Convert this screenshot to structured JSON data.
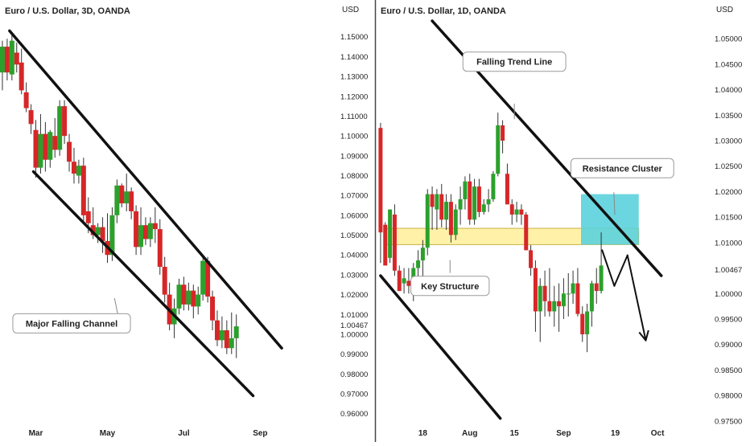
{
  "colors": {
    "up": "#2ca02c",
    "down": "#d62728",
    "wick": "#333333",
    "line": "#111111",
    "zone": "#fff2a8",
    "zone_stroke": "#c8b24a",
    "cluster": "#5bd2dc",
    "divider": "#444444",
    "axis_text": "#222222"
  },
  "chart_data": [
    {
      "type": "candlestick",
      "title": "Euro / U.S. Dollar, 3D, OANDA",
      "ylabel": "USD",
      "ylim": [
        0.955,
        1.158
      ],
      "y_ticks": [
        1.15,
        1.14,
        1.13,
        1.12,
        1.11,
        1.1,
        1.09,
        1.08,
        1.07,
        1.06,
        1.05,
        1.04,
        1.03,
        1.02,
        1.01,
        1.00467,
        1.0,
        0.99,
        0.98,
        0.97,
        0.96
      ],
      "y_tick_labels": [
        "1.15000",
        "1.14000",
        "1.13000",
        "1.12000",
        "1.11000",
        "1.10000",
        "1.09000",
        "1.08000",
        "1.07000",
        "1.06000",
        "1.05000",
        "1.04000",
        "1.03000",
        "1.02000",
        "1.01000",
        "1.00467",
        "1.00000",
        "0.99000",
        "0.98000",
        "0.97000",
        "0.96000"
      ],
      "x_tick_labels": [
        {
          "label": "Mar",
          "index": 7
        },
        {
          "label": "May",
          "index": 22
        },
        {
          "label": "Jul",
          "index": 38
        },
        {
          "label": "Sep",
          "index": 54
        }
      ],
      "x_count": 60,
      "candles": [
        {
          "o": 1.132,
          "h": 1.148,
          "l": 1.123,
          "c": 1.145
        },
        {
          "o": 1.145,
          "h": 1.149,
          "l": 1.128,
          "c": 1.132
        },
        {
          "o": 1.131,
          "h": 1.151,
          "l": 1.128,
          "c": 1.148
        },
        {
          "o": 1.142,
          "h": 1.147,
          "l": 1.132,
          "c": 1.136
        },
        {
          "o": 1.137,
          "h": 1.144,
          "l": 1.121,
          "c": 1.123
        },
        {
          "o": 1.122,
          "h": 1.127,
          "l": 1.112,
          "c": 1.114
        },
        {
          "o": 1.113,
          "h": 1.116,
          "l": 1.101,
          "c": 1.106
        },
        {
          "o": 1.103,
          "h": 1.108,
          "l": 1.079,
          "c": 1.084
        },
        {
          "o": 1.084,
          "h": 1.111,
          "l": 1.081,
          "c": 1.101
        },
        {
          "o": 1.101,
          "h": 1.107,
          "l": 1.082,
          "c": 1.088
        },
        {
          "o": 1.088,
          "h": 1.103,
          "l": 1.084,
          "c": 1.102
        },
        {
          "o": 1.1,
          "h": 1.109,
          "l": 1.089,
          "c": 1.093
        },
        {
          "o": 1.093,
          "h": 1.118,
          "l": 1.09,
          "c": 1.115
        },
        {
          "o": 1.115,
          "h": 1.118,
          "l": 1.096,
          "c": 1.1
        },
        {
          "o": 1.097,
          "h": 1.101,
          "l": 1.082,
          "c": 1.087
        },
        {
          "o": 1.087,
          "h": 1.094,
          "l": 1.076,
          "c": 1.081
        },
        {
          "o": 1.08,
          "h": 1.088,
          "l": 1.076,
          "c": 1.085
        },
        {
          "o": 1.085,
          "h": 1.089,
          "l": 1.056,
          "c": 1.06
        },
        {
          "o": 1.062,
          "h": 1.069,
          "l": 1.051,
          "c": 1.056
        },
        {
          "o": 1.055,
          "h": 1.064,
          "l": 1.048,
          "c": 1.05
        },
        {
          "o": 1.05,
          "h": 1.056,
          "l": 1.046,
          "c": 1.054
        },
        {
          "o": 1.054,
          "h": 1.059,
          "l": 1.041,
          "c": 1.047
        },
        {
          "o": 1.047,
          "h": 1.061,
          "l": 1.036,
          "c": 1.04
        },
        {
          "o": 1.04,
          "h": 1.064,
          "l": 1.037,
          "c": 1.06
        },
        {
          "o": 1.06,
          "h": 1.078,
          "l": 1.056,
          "c": 1.075
        },
        {
          "o": 1.075,
          "h": 1.076,
          "l": 1.064,
          "c": 1.066
        },
        {
          "o": 1.066,
          "h": 1.081,
          "l": 1.062,
          "c": 1.072
        },
        {
          "o": 1.072,
          "h": 1.074,
          "l": 1.058,
          "c": 1.062
        },
        {
          "o": 1.062,
          "h": 1.065,
          "l": 1.04,
          "c": 1.044
        },
        {
          "o": 1.044,
          "h": 1.064,
          "l": 1.04,
          "c": 1.055
        },
        {
          "o": 1.055,
          "h": 1.059,
          "l": 1.045,
          "c": 1.048
        },
        {
          "o": 1.048,
          "h": 1.059,
          "l": 1.044,
          "c": 1.056
        },
        {
          "o": 1.056,
          "h": 1.064,
          "l": 1.046,
          "c": 1.053
        },
        {
          "o": 1.053,
          "h": 1.058,
          "l": 1.03,
          "c": 1.034
        },
        {
          "o": 1.034,
          "h": 1.039,
          "l": 1.016,
          "c": 1.02
        },
        {
          "o": 1.02,
          "h": 1.026,
          "l": 1.002,
          "c": 1.005
        },
        {
          "o": 1.005,
          "h": 1.018,
          "l": 0.998,
          "c": 1.013
        },
        {
          "o": 1.013,
          "h": 1.028,
          "l": 1.01,
          "c": 1.025
        },
        {
          "o": 1.025,
          "h": 1.029,
          "l": 1.012,
          "c": 1.015
        },
        {
          "o": 1.015,
          "h": 1.026,
          "l": 1.012,
          "c": 1.022
        },
        {
          "o": 1.022,
          "h": 1.025,
          "l": 1.008,
          "c": 1.014
        },
        {
          "o": 1.014,
          "h": 1.024,
          "l": 1.01,
          "c": 1.02
        },
        {
          "o": 1.02,
          "h": 1.04,
          "l": 1.017,
          "c": 1.037
        },
        {
          "o": 1.037,
          "h": 1.039,
          "l": 1.016,
          "c": 1.019
        },
        {
          "o": 1.019,
          "h": 1.022,
          "l": 1.002,
          "c": 1.007
        },
        {
          "o": 1.007,
          "h": 1.012,
          "l": 0.994,
          "c": 0.997
        },
        {
          "o": 0.997,
          "h": 1.009,
          "l": 0.993,
          "c": 1.002
        },
        {
          "o": 1.002,
          "h": 1.007,
          "l": 0.99,
          "c": 0.993
        },
        {
          "o": 0.993,
          "h": 1.011,
          "l": 0.99,
          "c": 0.998
        },
        {
          "o": 0.998,
          "h": 1.01,
          "l": 0.988,
          "c": 1.004
        }
      ],
      "lines": [
        {
          "name": "channel-upper",
          "p1": [
            1.5,
            1.153
          ],
          "p2": [
            58.5,
            0.993
          ]
        },
        {
          "name": "channel-lower",
          "p1": [
            6.5,
            1.082
          ],
          "p2": [
            52.5,
            0.969
          ]
        },
        {
          "name": "callout-pointer",
          "p1": [
            23.5,
            1.018
          ],
          "p2": [
            24.6,
            1.005
          ]
        }
      ],
      "annotations": [
        {
          "text": "Major Falling Channel",
          "index": 14.5,
          "y": 1.0055
        }
      ]
    },
    {
      "type": "candlestick",
      "title": "Euro / U.S. Dollar, 1D, OANDA",
      "ylabel": "USD",
      "ylim": [
        0.9745,
        1.0535
      ],
      "y_ticks": [
        1.05,
        1.045,
        1.04,
        1.035,
        1.03,
        1.025,
        1.02,
        1.015,
        1.01,
        1.00467,
        1.0,
        0.995,
        0.99,
        0.985,
        0.98,
        0.975
      ],
      "y_tick_labels": [
        "1.05000",
        "1.04500",
        "1.04000",
        "1.03500",
        "1.03000",
        "1.02500",
        "1.02000",
        "1.01500",
        "1.01000",
        "1.00467",
        "1.00000",
        "0.99500",
        "0.99000",
        "0.98500",
        "0.98000",
        "0.97500"
      ],
      "x_tick_labels": [
        {
          "label": "18",
          "index": 9
        },
        {
          "label": "Aug",
          "index": 19
        },
        {
          "label": "15",
          "index": 28.5
        },
        {
          "label": "Sep",
          "index": 39
        },
        {
          "label": "19",
          "index": 50
        },
        {
          "label": "Oct",
          "index": 59
        }
      ],
      "x_count": 60,
      "candles": [
        {
          "o": 1.0325,
          "h": 1.0335,
          "l": 1.006,
          "c": 1.012
        },
        {
          "o": 1.0135,
          "h": 1.014,
          "l": 1.0055,
          "c": 1.0055
        },
        {
          "o": 1.007,
          "h": 1.0165,
          "l": 1.006,
          "c": 1.0165
        },
        {
          "o": 1.0155,
          "h": 1.0175,
          "l": 1.0035,
          "c": 1.0045
        },
        {
          "o": 1.0045,
          "h": 1.0055,
          "l": 1.0005,
          "c": 1.0005
        },
        {
          "o": 1.002,
          "h": 1.005,
          "l": 1.0,
          "c": 1.003
        },
        {
          "o": 1.0025,
          "h": 1.005,
          "l": 1.0,
          "c": 1.0015
        },
        {
          "o": 1.0015,
          "h": 1.006,
          "l": 0.9985,
          "c": 1.005
        },
        {
          "o": 1.005,
          "h": 1.0085,
          "l": 1.002,
          "c": 1.0065
        },
        {
          "o": 1.0065,
          "h": 1.0105,
          "l": 1.003,
          "c": 1.009
        },
        {
          "o": 1.009,
          "h": 1.0205,
          "l": 1.0075,
          "c": 1.0195
        },
        {
          "o": 1.0195,
          "h": 1.021,
          "l": 1.0125,
          "c": 1.017
        },
        {
          "o": 1.0165,
          "h": 1.0205,
          "l": 1.0125,
          "c": 1.0195
        },
        {
          "o": 1.0195,
          "h": 1.0215,
          "l": 1.013,
          "c": 1.0145
        },
        {
          "o": 1.0145,
          "h": 1.0195,
          "l": 1.0125,
          "c": 1.018
        },
        {
          "o": 1.018,
          "h": 1.0195,
          "l": 1.01,
          "c": 1.0115
        },
        {
          "o": 1.0115,
          "h": 1.0175,
          "l": 1.0105,
          "c": 1.0165
        },
        {
          "o": 1.0165,
          "h": 1.021,
          "l": 1.0135,
          "c": 1.0185
        },
        {
          "o": 1.0185,
          "h": 1.023,
          "l": 1.0165,
          "c": 1.022
        },
        {
          "o": 1.022,
          "h": 1.0235,
          "l": 1.0135,
          "c": 1.0145
        },
        {
          "o": 1.0145,
          "h": 1.0225,
          "l": 1.0135,
          "c": 1.021
        },
        {
          "o": 1.021,
          "h": 1.0225,
          "l": 1.015,
          "c": 1.016
        },
        {
          "o": 1.016,
          "h": 1.0185,
          "l": 1.0155,
          "c": 1.0175
        },
        {
          "o": 1.0175,
          "h": 1.0205,
          "l": 1.016,
          "c": 1.0185
        },
        {
          "o": 1.0185,
          "h": 1.024,
          "l": 1.018,
          "c": 1.0235
        },
        {
          "o": 1.0235,
          "h": 1.0355,
          "l": 1.023,
          "c": 1.033
        },
        {
          "o": 1.033,
          "h": 1.034,
          "l": 1.0275,
          "c": 1.03
        },
        {
          "o": 1.0235,
          "h": 1.0255,
          "l": 1.0175,
          "c": 1.0175
        },
        {
          "o": 1.0175,
          "h": 1.0185,
          "l": 1.0135,
          "c": 1.0155
        },
        {
          "o": 1.0155,
          "h": 1.018,
          "l": 1.014,
          "c": 1.0165
        },
        {
          "o": 1.0165,
          "h": 1.0175,
          "l": 1.0135,
          "c": 1.0155
        },
        {
          "o": 1.0155,
          "h": 1.016,
          "l": 1.0085,
          "c": 1.0085
        },
        {
          "o": 1.0085,
          "h": 1.0095,
          "l": 1.0035,
          "c": 1.005
        },
        {
          "o": 1.005,
          "h": 1.0065,
          "l": 0.9925,
          "c": 0.9965
        },
        {
          "o": 0.9965,
          "h": 1.003,
          "l": 0.9905,
          "c": 1.0015
        },
        {
          "o": 1.0015,
          "h": 1.0045,
          "l": 0.9955,
          "c": 0.9985
        },
        {
          "o": 0.9985,
          "h": 1.005,
          "l": 0.9955,
          "c": 0.9965
        },
        {
          "o": 0.9965,
          "h": 1.0015,
          "l": 0.9935,
          "c": 0.9985
        },
        {
          "o": 0.9985,
          "h": 1.002,
          "l": 0.9925,
          "c": 0.9975
        },
        {
          "o": 0.9975,
          "h": 1.003,
          "l": 0.995,
          "c": 1.0
        },
        {
          "o": 1.0,
          "h": 1.004,
          "l": 0.9955,
          "c": 1.0
        },
        {
          "o": 1.0,
          "h": 1.0045,
          "l": 0.998,
          "c": 1.002
        },
        {
          "o": 1.002,
          "h": 1.005,
          "l": 0.9955,
          "c": 0.996
        },
        {
          "o": 0.996,
          "h": 0.9975,
          "l": 0.9905,
          "c": 0.992
        },
        {
          "o": 0.992,
          "h": 0.998,
          "l": 0.9885,
          "c": 0.9965
        },
        {
          "o": 0.9965,
          "h": 1.0025,
          "l": 0.9935,
          "c": 1.002
        },
        {
          "o": 1.002,
          "h": 1.005,
          "l": 0.998,
          "c": 1.0005
        },
        {
          "o": 1.0005,
          "h": 1.012,
          "l": 1.0,
          "c": 1.0055
        }
      ],
      "lines": [
        {
          "name": "trendline-upper",
          "p1": [
            11,
            1.0535
          ],
          "p2": [
            59.8,
            1.0035
          ]
        },
        {
          "name": "channel-lower",
          "p1": [
            0,
            1.0035
          ],
          "p2": [
            25.5,
            0.9755
          ]
        },
        {
          "name": "forecast-1",
          "p1": [
            47.2,
            1.0085
          ],
          "p2": [
            49.8,
            1.0015
          ]
        },
        {
          "name": "forecast-2",
          "p1": [
            49.8,
            1.0015
          ],
          "p2": [
            52.6,
            1.0075
          ]
        },
        {
          "name": "forecast-3",
          "p1": [
            52.6,
            1.0075
          ],
          "p2": [
            56.5,
            0.9908
          ]
        },
        {
          "name": "callout-pointer-1",
          "p1": [
            28.5,
            1.0372
          ],
          "p2": [
            28.5,
            1.0343
          ]
        },
        {
          "name": "callout-pointer-2",
          "p1": [
            49.7,
            1.0198
          ],
          "p2": [
            49.9,
            1.0155
          ]
        },
        {
          "name": "callout-pointer-3",
          "p1": [
            14.8,
            1.0065
          ],
          "p2": [
            14.8,
            1.0041
          ]
        }
      ],
      "zones": [
        {
          "name": "key-structure-zone",
          "x1": 1,
          "x2": 55,
          "y1": 1.0128,
          "y2": 1.0096
        },
        {
          "name": "resistance-cluster",
          "x1": 42.7,
          "x2": 55,
          "y1": 1.0195,
          "y2": 1.0096
        }
      ],
      "annotations": [
        {
          "text": "Falling Trend Line",
          "index": 28.5,
          "y": 1.0455
        },
        {
          "text": "Resistance Cluster",
          "index": 51.5,
          "y": 1.0246
        },
        {
          "text": "Key Structure",
          "index": 14.8,
          "y": 1.0015
        }
      ]
    }
  ]
}
